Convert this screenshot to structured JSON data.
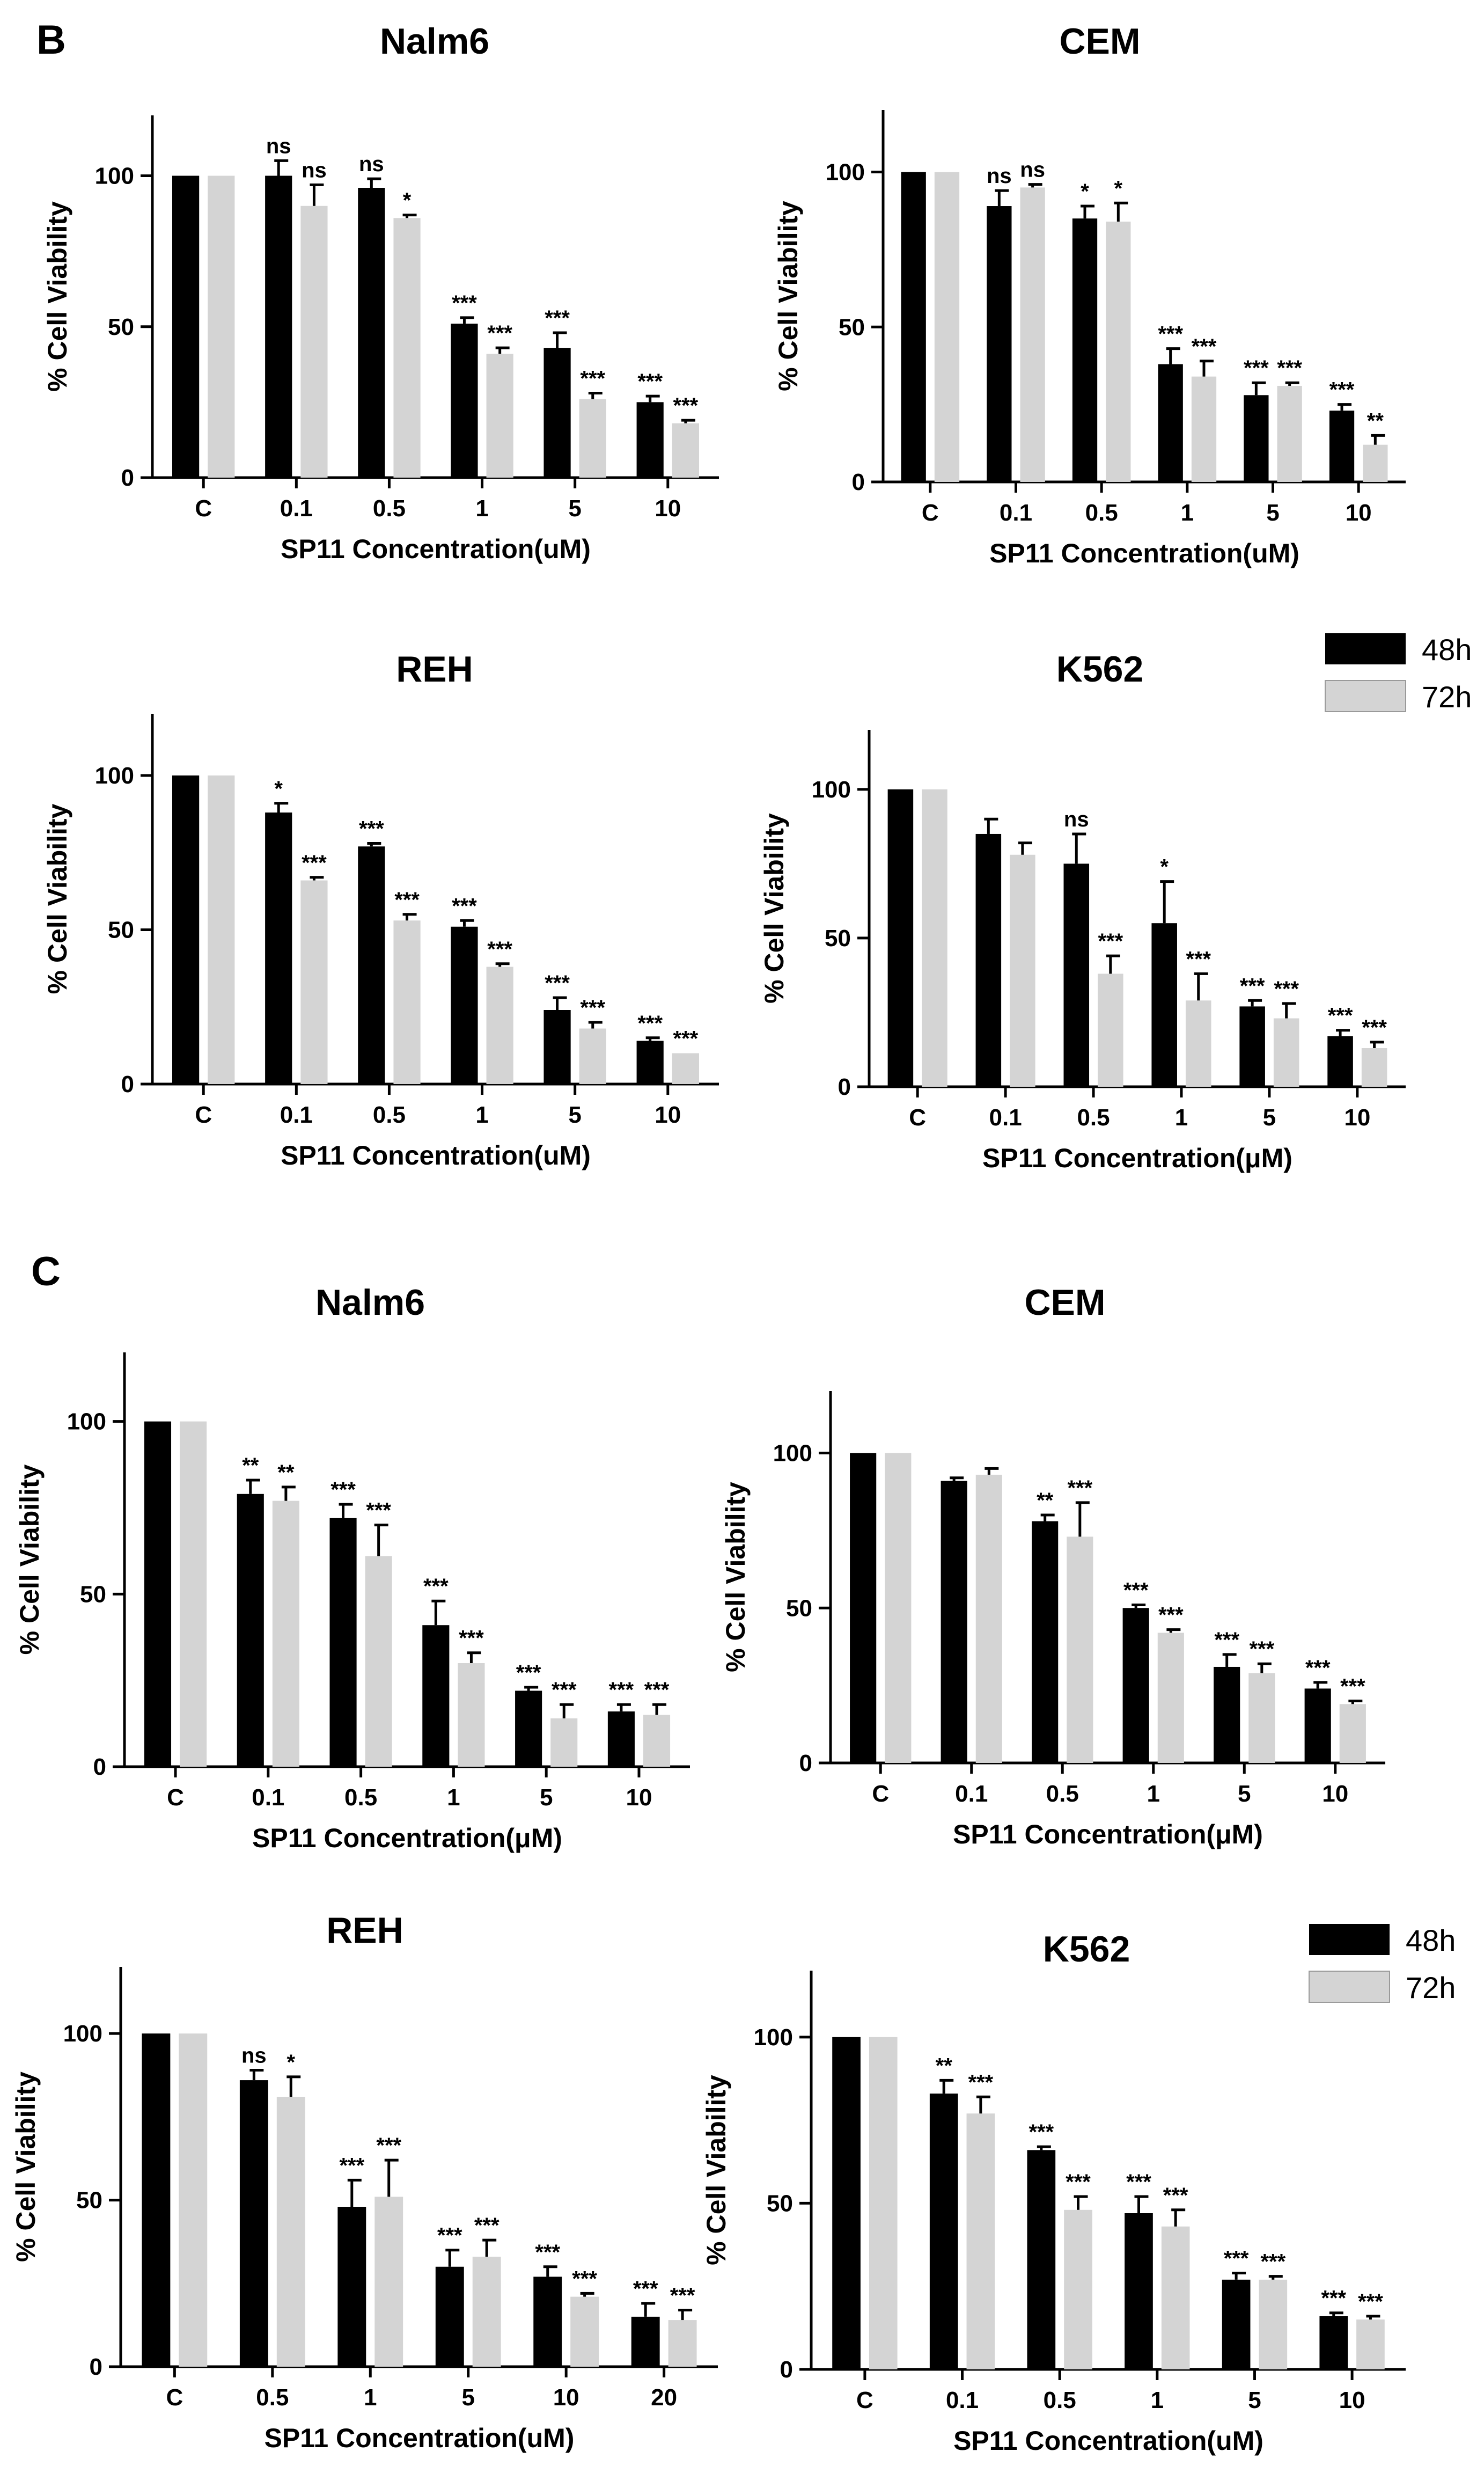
{
  "panels": [
    {
      "letter": "B"
    },
    {
      "letter": "C"
    }
  ],
  "colors": {
    "h48": "#000000",
    "h72": "#d4d4d4"
  },
  "chart_data": [
    {
      "type": "bar",
      "panel": "B",
      "title": "Nalm6",
      "xlabel": "SP11 Concentration(uM)",
      "ylabel": "% Cell Viability",
      "categories": [
        "C",
        "0.1",
        "0.5",
        "1",
        "5",
        "10"
      ],
      "ylim": [
        0,
        120
      ],
      "yticks": [
        0,
        50,
        100
      ],
      "series": [
        {
          "name": "48h",
          "values": [
            100,
            100,
            96,
            51,
            43,
            25
          ],
          "errors": [
            0,
            5,
            3,
            2,
            5,
            2
          ],
          "sig": [
            "",
            "ns",
            "ns",
            "***",
            "***",
            "***"
          ]
        },
        {
          "name": "72h",
          "values": [
            100,
            90,
            86,
            41,
            26,
            18
          ],
          "errors": [
            0,
            7,
            1,
            2,
            2,
            1
          ],
          "sig": [
            "",
            "ns",
            "*",
            "***",
            "***",
            "***"
          ]
        }
      ]
    },
    {
      "type": "bar",
      "panel": "B",
      "title": "CEM",
      "xlabel": "SP11 Concentration(uM)",
      "ylabel": "% Cell Viability",
      "categories": [
        "C",
        "0.1",
        "0.5",
        "1",
        "5",
        "10"
      ],
      "ylim": [
        0,
        120
      ],
      "yticks": [
        0,
        50,
        100
      ],
      "series": [
        {
          "name": "48h",
          "values": [
            100,
            89,
            85,
            38,
            28,
            23
          ],
          "errors": [
            0,
            5,
            4,
            5,
            4,
            2
          ],
          "sig": [
            "",
            "ns",
            "*",
            "***",
            "***",
            "***"
          ]
        },
        {
          "name": "72h",
          "values": [
            100,
            95,
            84,
            34,
            31,
            12
          ],
          "errors": [
            0,
            1,
            6,
            5,
            1,
            3
          ],
          "sig": [
            "",
            "ns",
            "*",
            "***",
            "***",
            "**"
          ]
        }
      ]
    },
    {
      "type": "bar",
      "panel": "B",
      "title": "REH",
      "xlabel": "SP11 Concentration(uM)",
      "ylabel": "% Cell Viability",
      "categories": [
        "C",
        "0.1",
        "0.5",
        "1",
        "5",
        "10"
      ],
      "ylim": [
        0,
        120
      ],
      "yticks": [
        0,
        50,
        100
      ],
      "series": [
        {
          "name": "48h",
          "values": [
            100,
            88,
            77,
            51,
            24,
            14
          ],
          "errors": [
            0,
            3,
            1,
            2,
            4,
            1
          ],
          "sig": [
            "",
            "*",
            "***",
            "***",
            "***",
            "***"
          ]
        },
        {
          "name": "72h",
          "values": [
            100,
            66,
            53,
            38,
            18,
            10
          ],
          "errors": [
            0,
            1,
            2,
            1,
            2,
            0
          ],
          "sig": [
            "",
            "***",
            "***",
            "***",
            "***",
            "***"
          ]
        }
      ]
    },
    {
      "type": "bar",
      "panel": "B",
      "title": "K562",
      "xlabel": "SP11 Concentration(μM)",
      "ylabel": "% Cell Viability",
      "categories": [
        "C",
        "0.1",
        "0.5",
        "1",
        "5",
        "10"
      ],
      "ylim": [
        0,
        120
      ],
      "yticks": [
        0,
        50,
        100
      ],
      "legend": {
        "position": "top-right",
        "entries": [
          "48h",
          "72h"
        ]
      },
      "series": [
        {
          "name": "48h",
          "values": [
            100,
            85,
            75,
            55,
            27,
            17
          ],
          "errors": [
            0,
            5,
            10,
            14,
            2,
            2
          ],
          "sig": [
            "",
            "",
            "ns",
            "*",
            "***",
            "***"
          ]
        },
        {
          "name": "72h",
          "values": [
            100,
            78,
            38,
            29,
            23,
            13
          ],
          "errors": [
            0,
            4,
            6,
            9,
            5,
            2
          ],
          "sig": [
            "",
            "",
            "***",
            "***",
            "***",
            "***"
          ]
        }
      ]
    },
    {
      "type": "bar",
      "panel": "C",
      "title": "Nalm6",
      "xlabel": "SP11 Concentration(μM)",
      "ylabel": "% Cell Viability",
      "categories": [
        "C",
        "0.1",
        "0.5",
        "1",
        "5",
        "10"
      ],
      "ylim": [
        0,
        120
      ],
      "yticks": [
        0,
        50,
        100
      ],
      "series": [
        {
          "name": "48h",
          "values": [
            100,
            79,
            72,
            41,
            22,
            16
          ],
          "errors": [
            0,
            4,
            4,
            7,
            1,
            2
          ],
          "sig": [
            "",
            "**",
            "***",
            "***",
            "***",
            "***"
          ]
        },
        {
          "name": "72h",
          "values": [
            100,
            77,
            61,
            30,
            14,
            15
          ],
          "errors": [
            0,
            4,
            9,
            3,
            4,
            3
          ],
          "sig": [
            "",
            "**",
            "***",
            "***",
            "***",
            "***"
          ]
        }
      ]
    },
    {
      "type": "bar",
      "panel": "C",
      "title": "CEM",
      "xlabel": "SP11 Concentration(μM)",
      "ylabel": "% Cell Viability",
      "categories": [
        "C",
        "0.1",
        "0.5",
        "1",
        "5",
        "10"
      ],
      "ylim": [
        0,
        120
      ],
      "yticks": [
        0,
        50,
        100
      ],
      "series": [
        {
          "name": "48h",
          "values": [
            100,
            91,
            78,
            50,
            31,
            24
          ],
          "errors": [
            0,
            1,
            2,
            1,
            4,
            2
          ],
          "sig": [
            "",
            "",
            "**",
            "***",
            "***",
            "***"
          ]
        },
        {
          "name": "72h",
          "values": [
            100,
            93,
            73,
            42,
            29,
            19
          ],
          "errors": [
            0,
            2,
            11,
            1,
            3,
            1
          ],
          "sig": [
            "",
            "",
            "***",
            "***",
            "***",
            "***"
          ]
        }
      ]
    },
    {
      "type": "bar",
      "panel": "C",
      "title": "REH",
      "xlabel": "SP11 Concentration(uM)",
      "ylabel": "% Cell Viability",
      "categories": [
        "C",
        "0.5",
        "1",
        "5",
        "10",
        "20"
      ],
      "ylim": [
        0,
        120
      ],
      "yticks": [
        0,
        50,
        100
      ],
      "series": [
        {
          "name": "48h",
          "values": [
            100,
            86,
            48,
            30,
            27,
            15
          ],
          "errors": [
            0,
            3,
            8,
            5,
            3,
            4
          ],
          "sig": [
            "",
            "ns",
            "***",
            "***",
            "***",
            "***"
          ]
        },
        {
          "name": "72h",
          "values": [
            100,
            81,
            51,
            33,
            21,
            14
          ],
          "errors": [
            0,
            6,
            11,
            5,
            1,
            3
          ],
          "sig": [
            "",
            "*",
            "***",
            "***",
            "***",
            "***"
          ]
        }
      ]
    },
    {
      "type": "bar",
      "panel": "C",
      "title": "K562",
      "xlabel": "SP11 Concentration(uM)",
      "ylabel": "% Cell Viability",
      "categories": [
        "C",
        "0.1",
        "0.5",
        "1",
        "5",
        "10"
      ],
      "ylim": [
        0,
        120
      ],
      "yticks": [
        0,
        50,
        100
      ],
      "legend": {
        "position": "top-right",
        "entries": [
          "48h",
          "72h"
        ]
      },
      "series": [
        {
          "name": "48h",
          "values": [
            100,
            83,
            66,
            47,
            27,
            16
          ],
          "errors": [
            0,
            4,
            1,
            5,
            2,
            1
          ],
          "sig": [
            "",
            "**",
            "***",
            "***",
            "***",
            "***"
          ]
        },
        {
          "name": "72h",
          "values": [
            100,
            77,
            48,
            43,
            27,
            15
          ],
          "errors": [
            0,
            5,
            4,
            5,
            1,
            1
          ],
          "sig": [
            "",
            "***",
            "***",
            "***",
            "***",
            "***"
          ]
        }
      ]
    }
  ]
}
